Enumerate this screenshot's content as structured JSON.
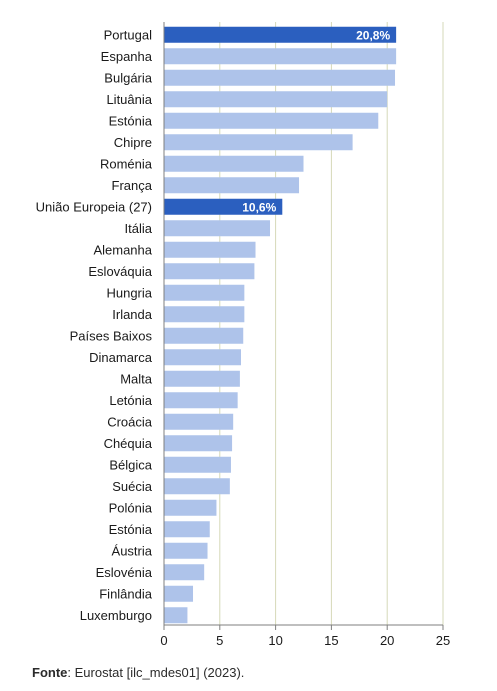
{
  "chart_data": {
    "type": "bar",
    "orientation": "horizontal",
    "categories": [
      "Portugal",
      "Espanha",
      "Bulgária",
      "Lituânia",
      "Estónia",
      "Chipre",
      "Roménia",
      "França",
      "União Europeia (27)",
      "Itália",
      "Alemanha",
      "Eslováquia",
      "Hungria",
      "Irlanda",
      "Países Baixos",
      "Dinamarca",
      "Malta",
      "Letónia",
      "Croácia",
      "Chéquia",
      "Bélgica",
      "Suécia",
      "Polónia",
      "Estónia",
      "Áustria",
      "Eslovénia",
      "Finlândia",
      "Luxemburgo"
    ],
    "values": [
      20.8,
      20.8,
      20.7,
      20.0,
      19.2,
      16.9,
      12.5,
      12.1,
      10.6,
      9.5,
      8.2,
      8.1,
      7.2,
      7.2,
      7.1,
      6.9,
      6.8,
      6.6,
      6.2,
      6.1,
      6.0,
      5.9,
      4.7,
      4.1,
      3.9,
      3.6,
      2.6,
      2.1
    ],
    "highlighted": [
      "Portugal",
      "União Europeia (27)"
    ],
    "data_labels": {
      "0": "20,8%",
      "8": "10,6%"
    },
    "xlim": [
      0,
      25
    ],
    "xticks": [
      "0",
      "5",
      "10",
      "15",
      "20",
      "25"
    ],
    "grid": "vertical",
    "colors": {
      "bar": "#aec3ea",
      "highlight": "#2b5fbf",
      "grid": "#d6d9b8",
      "axis": "#7f7f7f"
    }
  },
  "source": {
    "label": "Fonte",
    "text": ": Eurostat [ilc_mdes01] (2023)."
  }
}
